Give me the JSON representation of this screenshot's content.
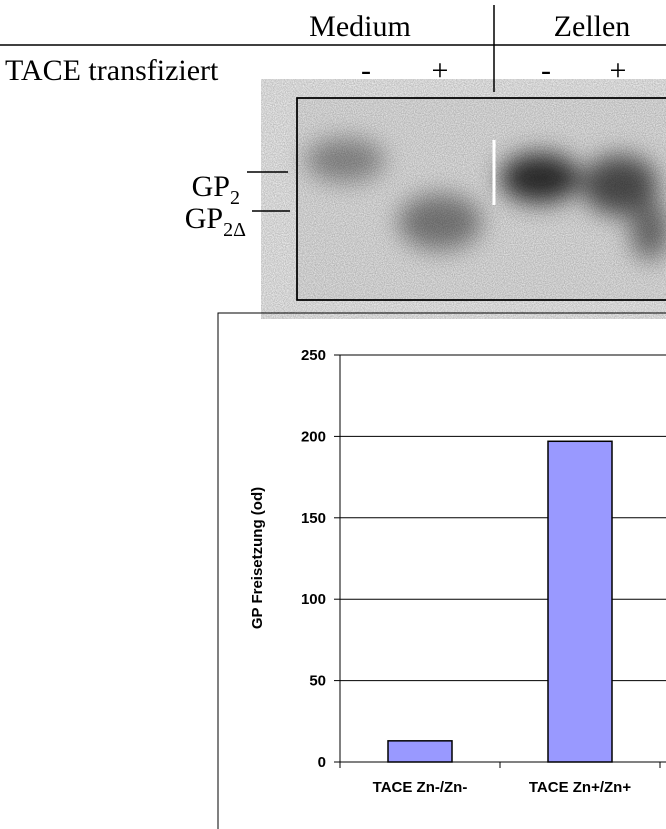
{
  "blot": {
    "groups": [
      "Medium",
      "Zellen"
    ],
    "row_label": "TACE transfiziert",
    "lanes": [
      "-",
      "+",
      "-",
      "+"
    ],
    "bands": [
      {
        "text": "GP",
        "subscript": "2"
      },
      {
        "text": "GP",
        "subscript": "2Δ"
      }
    ]
  },
  "chart_data": {
    "type": "bar",
    "ylabel": "GP Freisetzung (od)",
    "categories": [
      "TACE Zn-/Zn-",
      "TACE Zn+/Zn+"
    ],
    "values": [
      13,
      197
    ],
    "color": "#9999ff",
    "ylim": [
      0,
      250
    ],
    "yticks": [
      0,
      50,
      100,
      150,
      200,
      250
    ],
    "grid": true
  }
}
